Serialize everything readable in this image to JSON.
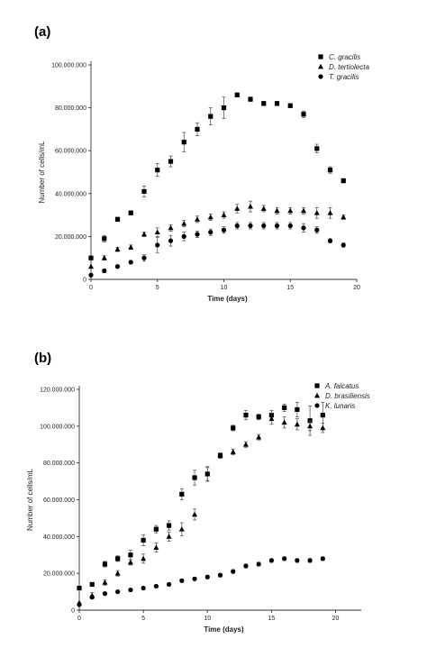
{
  "chart_data": [
    {
      "type": "scatter",
      "panel_label": "(a)",
      "xlabel": "Time (days)",
      "ylabel": "Number of cells/mL",
      "xlim": [
        0,
        20
      ],
      "ylim": [
        0,
        100000000
      ],
      "xticks": [
        0,
        5,
        10,
        15,
        20
      ],
      "yticks": [
        0,
        20000000,
        40000000,
        60000000,
        80000000,
        100000000
      ],
      "ytick_labels": [
        "0",
        "20.000.000",
        "40.000.000",
        "60.000.000",
        "80.000.000",
        "100.000.000"
      ],
      "xtick_labels": [
        "0",
        "5",
        "10",
        "15",
        "20"
      ],
      "grid": false,
      "legend_position": "top-right",
      "series": [
        {
          "name": "C. gracilis",
          "marker": "square",
          "x": [
            0,
            1,
            2,
            3,
            4,
            5,
            6,
            7,
            8,
            9,
            10,
            11,
            12,
            13,
            14,
            15,
            16,
            17,
            18,
            19
          ],
          "y": [
            10000000,
            19000000,
            28000000,
            31000000,
            41000000,
            51000000,
            55000000,
            64000000,
            70000000,
            76000000,
            80000000,
            86000000,
            84000000,
            82000000,
            82000000,
            81000000,
            77000000,
            61000000,
            51000000,
            46000000
          ],
          "err": [
            0,
            1500000,
            1000000,
            1000000,
            2500000,
            3000000,
            2500000,
            4500000,
            3000000,
            4000000,
            5000000,
            1000000,
            1000000,
            1000000,
            1000000,
            1000000,
            1500000,
            2000000,
            1500000,
            1000000
          ]
        },
        {
          "name": "D. tertiolecta",
          "marker": "triangle",
          "x": [
            0,
            1,
            2,
            3,
            4,
            5,
            6,
            7,
            8,
            9,
            10,
            11,
            12,
            13,
            14,
            15,
            16,
            17,
            18,
            19
          ],
          "y": [
            6000000,
            10000000,
            14000000,
            15000000,
            21000000,
            22000000,
            24000000,
            26000000,
            28000000,
            29000000,
            30000000,
            33000000,
            34000000,
            33000000,
            32000000,
            32000000,
            32000000,
            31000000,
            31000000,
            29000000
          ],
          "err": [
            0,
            1000000,
            1000000,
            1000000,
            1000000,
            2000000,
            1500000,
            1500000,
            1500000,
            1500000,
            1500000,
            2000000,
            2500000,
            1500000,
            1500000,
            1500000,
            1500000,
            2500000,
            2500000,
            1000000
          ]
        },
        {
          "name": "T. gracilis",
          "marker": "circle",
          "x": [
            0,
            1,
            2,
            3,
            4,
            5,
            6,
            7,
            8,
            9,
            10,
            11,
            12,
            13,
            14,
            15,
            16,
            17,
            18,
            19
          ],
          "y": [
            2000000,
            4000000,
            6000000,
            8000000,
            10000000,
            16000000,
            18000000,
            20000000,
            21000000,
            22000000,
            23000000,
            25000000,
            25000000,
            25000000,
            25000000,
            25000000,
            24000000,
            23000000,
            18000000,
            16000000
          ],
          "err": [
            0,
            800000,
            800000,
            800000,
            1500000,
            3500000,
            2500000,
            2000000,
            1500000,
            1500000,
            1500000,
            1500000,
            1500000,
            1500000,
            1500000,
            1500000,
            2000000,
            1500000,
            1000000,
            1000000
          ]
        }
      ]
    },
    {
      "type": "scatter",
      "panel_label": "(b)",
      "xlabel": "Time (days)",
      "ylabel": "Number of cells/mL",
      "xlim": [
        0,
        22
      ],
      "ylim": [
        0,
        120000000
      ],
      "xticks": [
        0,
        5,
        10,
        15,
        20
      ],
      "yticks": [
        0,
        20000000,
        40000000,
        60000000,
        80000000,
        100000000,
        120000000
      ],
      "ytick_labels": [
        "0",
        "20.000.000",
        "40.000.000",
        "60.000.000",
        "80.000.000",
        "100.000.000",
        "120.000.000"
      ],
      "xtick_labels": [
        "0",
        "5",
        "10",
        "15",
        "20"
      ],
      "grid": false,
      "legend_position": "top-right",
      "series": [
        {
          "name": "A. falcatus",
          "marker": "square",
          "x": [
            0,
            1,
            2,
            3,
            4,
            5,
            6,
            7,
            8,
            9,
            10,
            11,
            12,
            13,
            14,
            15,
            16,
            17,
            18,
            19
          ],
          "y": [
            12000000,
            14000000,
            25000000,
            28000000,
            30000000,
            38000000,
            44000000,
            46000000,
            63000000,
            72000000,
            74000000,
            84000000,
            99000000,
            106000000,
            105000000,
            106000000,
            110000000,
            109000000,
            103000000,
            106000000
          ],
          "err": [
            0,
            1000000,
            1500000,
            1500000,
            2500000,
            3000000,
            2000000,
            2500000,
            3000000,
            4000000,
            4000000,
            1500000,
            1500000,
            2500000,
            1500000,
            2500000,
            2000000,
            4000000,
            8000000,
            7000000
          ]
        },
        {
          "name": "D. brasiliensis",
          "marker": "triangle",
          "x": [
            0,
            1,
            2,
            3,
            4,
            5,
            6,
            7,
            8,
            9,
            10,
            11,
            12,
            13,
            14,
            15,
            16,
            17,
            18,
            19
          ],
          "y": [
            4000000,
            8000000,
            15000000,
            20000000,
            26000000,
            28000000,
            34000000,
            40000000,
            44000000,
            52000000,
            74000000,
            84000000,
            86000000,
            90000000,
            94000000,
            104000000,
            102000000,
            101000000,
            100000000,
            99000000
          ],
          "err": [
            0,
            1500000,
            1500000,
            1500000,
            1500000,
            2500000,
            2500000,
            2500000,
            3500000,
            3000000,
            3500000,
            1500000,
            1500000,
            1500000,
            1500000,
            3000000,
            3000000,
            3000000,
            2500000,
            2500000
          ]
        },
        {
          "name": "K. lunaris",
          "marker": "circle",
          "x": [
            0,
            1,
            2,
            3,
            4,
            5,
            6,
            7,
            8,
            9,
            10,
            11,
            12,
            13,
            14,
            15,
            16,
            17,
            18,
            19
          ],
          "y": [
            3000000,
            7000000,
            9000000,
            10000000,
            11000000,
            12000000,
            13000000,
            14000000,
            16000000,
            17000000,
            18000000,
            19000000,
            21000000,
            24000000,
            25000000,
            27000000,
            28000000,
            27000000,
            27000000,
            28000000
          ],
          "err": [
            0,
            800000,
            800000,
            800000,
            800000,
            800000,
            800000,
            800000,
            800000,
            800000,
            800000,
            1000000,
            1000000,
            1000000,
            1000000,
            1000000,
            1000000,
            1000000,
            1000000,
            1000000
          ]
        }
      ]
    }
  ]
}
